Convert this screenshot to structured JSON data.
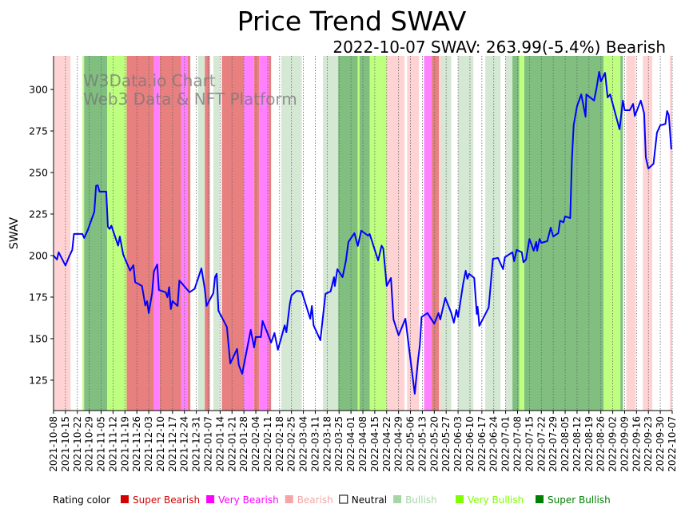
{
  "chart_data": {
    "type": "line",
    "title": "Price Trend SWAV",
    "subtitle": "2022-10-07 SWAV: 263.99(-5.4%) Bearish",
    "ylabel": "SWAV",
    "xlabel": "",
    "ylim": [
      106.7,
      320.2
    ],
    "xlim_days": [
      0,
      364
    ],
    "x_unit": "days since 2021-10-08",
    "yticks": [
      125,
      150,
      175,
      200,
      225,
      250,
      275,
      300
    ],
    "xtick_labels": [
      "2021-10-08",
      "2021-10-15",
      "2021-10-22",
      "2021-10-29",
      "2021-11-05",
      "2021-11-12",
      "2021-11-19",
      "2021-11-26",
      "2021-12-03",
      "2021-12-10",
      "2021-12-17",
      "2021-12-24",
      "2021-12-31",
      "2022-01-07",
      "2022-01-14",
      "2022-01-21",
      "2022-01-28",
      "2022-02-04",
      "2022-02-11",
      "2022-02-18",
      "2022-02-25",
      "2022-03-04",
      "2022-03-11",
      "2022-03-18",
      "2022-03-25",
      "2022-04-01",
      "2022-04-08",
      "2022-04-15",
      "2022-04-22",
      "2022-04-29",
      "2022-05-06",
      "2022-05-13",
      "2022-05-20",
      "2022-05-27",
      "2022-06-03",
      "2022-06-10",
      "2022-06-17",
      "2022-06-24",
      "2022-07-01",
      "2022-07-08",
      "2022-07-15",
      "2022-07-22",
      "2022-07-29",
      "2022-08-05",
      "2022-08-12",
      "2022-08-19",
      "2022-08-26",
      "2022-09-02",
      "2022-09-09",
      "2022-09-16",
      "2022-09-23",
      "2022-09-30",
      "2022-10-07"
    ],
    "line_color": "#0000ff",
    "series": [
      {
        "name": "SWAV",
        "points": [
          [
            0,
            200
          ],
          [
            2,
            197.6
          ],
          [
            3,
            202
          ],
          [
            7,
            194
          ],
          [
            9,
            199
          ],
          [
            11,
            203.4
          ],
          [
            12,
            213
          ],
          [
            17,
            213
          ],
          [
            18,
            210.6
          ],
          [
            20,
            215
          ],
          [
            24,
            226.4
          ],
          [
            25,
            242
          ],
          [
            26,
            242.3
          ],
          [
            27,
            238.5
          ],
          [
            31,
            238.5
          ],
          [
            32,
            217.3
          ],
          [
            33,
            216
          ],
          [
            34,
            218
          ],
          [
            38,
            206
          ],
          [
            39,
            211.5
          ],
          [
            41,
            200.5
          ],
          [
            45,
            191
          ],
          [
            47,
            194.2
          ],
          [
            48,
            184
          ],
          [
            52,
            181.7
          ],
          [
            54,
            170
          ],
          [
            55,
            172.6
          ],
          [
            56,
            165.4
          ],
          [
            58,
            177.4
          ],
          [
            59,
            190.4
          ],
          [
            61,
            194.7
          ],
          [
            62,
            179.3
          ],
          [
            66,
            177.9
          ],
          [
            67,
            175
          ],
          [
            68,
            181
          ],
          [
            69,
            167.8
          ],
          [
            70,
            172.6
          ],
          [
            73,
            169.7
          ],
          [
            74,
            185
          ],
          [
            80,
            177.9
          ],
          [
            83,
            180
          ],
          [
            87,
            192.3
          ],
          [
            89,
            180
          ],
          [
            90,
            169.7
          ],
          [
            94,
            177.4
          ],
          [
            95,
            187
          ],
          [
            96,
            189
          ],
          [
            97,
            166.8
          ],
          [
            102,
            157
          ],
          [
            103,
            145.7
          ],
          [
            104,
            135
          ],
          [
            108,
            143.8
          ],
          [
            109,
            134
          ],
          [
            111,
            128.8
          ],
          [
            114,
            144.7
          ],
          [
            116,
            155.3
          ],
          [
            118,
            144.7
          ],
          [
            119,
            151
          ],
          [
            122,
            151
          ],
          [
            123,
            160.6
          ],
          [
            126,
            153
          ],
          [
            128,
            147.6
          ],
          [
            130,
            153.4
          ],
          [
            132,
            143.3
          ],
          [
            136,
            158
          ],
          [
            137,
            153.8
          ],
          [
            139,
            171
          ],
          [
            140,
            176
          ],
          [
            143,
            178.8
          ],
          [
            146,
            178.4
          ],
          [
            151,
            162
          ],
          [
            152,
            169.7
          ],
          [
            153,
            158
          ],
          [
            157,
            149
          ],
          [
            160,
            177
          ],
          [
            163,
            178.4
          ],
          [
            165,
            187
          ],
          [
            165.5,
            181.7
          ],
          [
            167,
            191.8
          ],
          [
            170,
            187
          ],
          [
            172,
            196.6
          ],
          [
            173.5,
            208.2
          ],
          [
            177,
            213.5
          ],
          [
            179,
            205.8
          ],
          [
            181,
            215
          ],
          [
            185,
            212
          ],
          [
            186,
            213
          ],
          [
            191,
            197
          ],
          [
            193,
            206
          ],
          [
            194,
            204.3
          ],
          [
            196,
            181.7
          ],
          [
            198.5,
            186.5
          ],
          [
            200,
            161.5
          ],
          [
            203,
            152
          ],
          [
            207,
            162
          ],
          [
            210,
            137.5
          ],
          [
            212.5,
            116.8
          ],
          [
            214.5,
            137.5
          ],
          [
            215.5,
            145.7
          ],
          [
            216.5,
            163
          ],
          [
            220,
            165.4
          ],
          [
            224,
            159
          ],
          [
            226.5,
            165.4
          ],
          [
            227.5,
            161.5
          ],
          [
            230.5,
            174.5
          ],
          [
            234,
            165.4
          ],
          [
            235.5,
            159.6
          ],
          [
            237,
            167.3
          ],
          [
            238,
            163
          ],
          [
            241,
            183.2
          ],
          [
            242.5,
            190.9
          ],
          [
            243.5,
            186
          ],
          [
            244.5,
            189
          ],
          [
            247.5,
            186.5
          ],
          [
            249,
            164.9
          ],
          [
            249.5,
            169.2
          ],
          [
            250.5,
            157.7
          ],
          [
            256,
            168.7
          ],
          [
            258.5,
            198
          ],
          [
            261.5,
            198.6
          ],
          [
            264.5,
            191.8
          ],
          [
            265.5,
            199
          ],
          [
            270,
            202
          ],
          [
            271,
            196.6
          ],
          [
            272.5,
            203.4
          ],
          [
            275.5,
            202
          ],
          [
            276.5,
            196
          ],
          [
            278,
            197.6
          ],
          [
            280,
            210
          ],
          [
            282.5,
            202.9
          ],
          [
            284,
            208.2
          ],
          [
            284.5,
            202.9
          ],
          [
            286,
            210
          ],
          [
            287,
            207.7
          ],
          [
            290.5,
            208.7
          ],
          [
            292.5,
            216.8
          ],
          [
            294,
            211.5
          ],
          [
            297,
            213.5
          ],
          [
            298,
            221
          ],
          [
            300,
            220
          ],
          [
            301,
            223.6
          ],
          [
            304,
            222.6
          ],
          [
            305,
            257.7
          ],
          [
            306,
            278.4
          ],
          [
            308,
            289.9
          ],
          [
            310.5,
            297
          ],
          [
            313,
            283.6
          ],
          [
            313.5,
            297
          ],
          [
            318,
            293.3
          ],
          [
            319.5,
            301
          ],
          [
            321,
            310.6
          ],
          [
            322,
            304.8
          ],
          [
            324.5,
            310
          ],
          [
            326,
            295.2
          ],
          [
            327.5,
            297
          ],
          [
            333,
            276
          ],
          [
            335,
            293.3
          ],
          [
            336,
            287.5
          ],
          [
            339,
            287.5
          ],
          [
            341,
            291.3
          ],
          [
            342,
            284.1
          ],
          [
            345.5,
            293.3
          ],
          [
            347.5,
            285.6
          ],
          [
            348.5,
            259.1
          ],
          [
            350,
            252.4
          ],
          [
            353,
            255.3
          ],
          [
            355,
            274
          ],
          [
            357,
            278.4
          ],
          [
            360,
            279.3
          ],
          [
            361,
            287
          ],
          [
            362,
            284.6
          ],
          [
            363.5,
            264
          ]
        ]
      }
    ],
    "rating_bands": [
      [
        0.5,
        10,
        "bearish"
      ],
      [
        17,
        18,
        "very_bullish"
      ],
      [
        18,
        31.5,
        "super_bullish"
      ],
      [
        31.5,
        43,
        "very_bullish"
      ],
      [
        43,
        59,
        "super_bearish"
      ],
      [
        59,
        62.5,
        "very_bearish"
      ],
      [
        62.5,
        75,
        "super_bearish"
      ],
      [
        75,
        79,
        "very_bearish"
      ],
      [
        79,
        80.5,
        "super_bearish"
      ],
      [
        85,
        89,
        "bullish"
      ],
      [
        89,
        92,
        "super_bearish"
      ],
      [
        94,
        98,
        "bullish"
      ],
      [
        99,
        112,
        "super_bearish"
      ],
      [
        112,
        118,
        "very_bearish"
      ],
      [
        118,
        121,
        "super_bearish"
      ],
      [
        121,
        126.5,
        "very_bearish"
      ],
      [
        126.5,
        128,
        "super_bearish"
      ],
      [
        134,
        146,
        "bullish"
      ],
      [
        158.5,
        167.5,
        "bullish"
      ],
      [
        167.5,
        179,
        "super_bullish"
      ],
      [
        179,
        180,
        "very_bullish"
      ],
      [
        180,
        186,
        "super_bullish"
      ],
      [
        186,
        196,
        "very_bullish"
      ],
      [
        196,
        206.5,
        "bearish"
      ],
      [
        208,
        215,
        "bearish"
      ],
      [
        218,
        222.5,
        "very_bearish"
      ],
      [
        222.5,
        226.7,
        "super_bearish"
      ],
      [
        226.7,
        228,
        "bearish"
      ],
      [
        228,
        234,
        "bullish"
      ],
      [
        238,
        247,
        "bullish"
      ],
      [
        254,
        263,
        "bullish"
      ],
      [
        266,
        270,
        "bullish"
      ],
      [
        270,
        274,
        "super_bullish"
      ],
      [
        274,
        277,
        "very_bullish"
      ],
      [
        277,
        323.6,
        "super_bullish"
      ],
      [
        323.6,
        333.5,
        "very_bullish"
      ],
      [
        333.5,
        335,
        "super_bullish"
      ],
      [
        337,
        342.5,
        "bearish"
      ],
      [
        346.7,
        352.3,
        "bearish"
      ],
      [
        362.6,
        364,
        "bearish"
      ]
    ],
    "band_colors": {
      "super_bearish": "#e88080",
      "very_bearish": "#ff80ff",
      "bearish": "#ffd3d3",
      "bullish": "#d5e8d4",
      "very_bullish": "#bfff7f",
      "super_bullish": "#80bf80"
    },
    "legend": {
      "title": "Rating color",
      "placement": "bottom",
      "items": [
        {
          "label": "Super Bearish",
          "color": "#d40000",
          "text_color": "#d40000"
        },
        {
          "label": "Very Bearish",
          "color": "#ff00ff",
          "text_color": "#ff00ff"
        },
        {
          "label": "Bearish",
          "color": "#f4a6a6",
          "text_color": "#f4a6a6"
        },
        {
          "label": "Neutral",
          "color": "#ffffff",
          "text_color": "#000000"
        },
        {
          "label": "Bullish",
          "color": "#a8d5a8",
          "text_color": "#a8d5a8"
        },
        {
          "label": "Very Bullish",
          "color": "#7fff00",
          "text_color": "#7fff00"
        },
        {
          "label": "Super Bullish",
          "color": "#008000",
          "text_color": "#008000"
        }
      ]
    },
    "watermark": [
      "W3Data.io Chart",
      "Web3 Data & NFT Platform"
    ]
  }
}
